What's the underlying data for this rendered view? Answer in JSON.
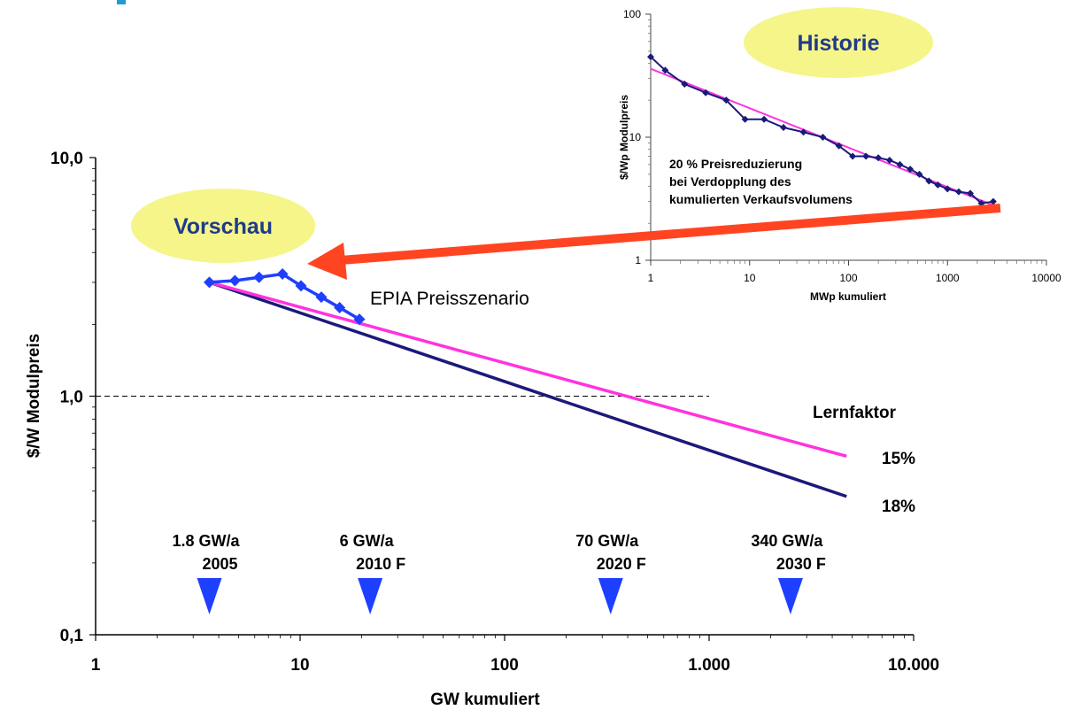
{
  "chart_data": [
    {
      "type": "line",
      "scale": "log-log",
      "xlabel": "GW  kumuliert",
      "ylabel": "$/W  Modulpreis",
      "xlim": [
        1,
        10000
      ],
      "ylim": [
        0.1,
        10
      ],
      "x_ticks": [
        1,
        10,
        100,
        1000,
        10000
      ],
      "x_tick_labels": [
        "1",
        "10",
        "100",
        "1.000",
        "10.000"
      ],
      "y_ticks": [
        0.1,
        1,
        10
      ],
      "y_tick_labels": [
        "0,1",
        "1,0",
        "10,0"
      ],
      "grid": false,
      "reference_line": {
        "y": 1.0,
        "x_range": [
          1,
          1000
        ],
        "style": "dashed"
      },
      "series": [
        {
          "name": "EPIA Preisszenario",
          "color": "#1f3fff",
          "marker": "diamond",
          "x": [
            3.6,
            4.8,
            6.3,
            8.2,
            10.1,
            12.7,
            15.6,
            19.5
          ],
          "y": [
            3.0,
            3.05,
            3.15,
            3.25,
            2.9,
            2.6,
            2.35,
            2.1
          ]
        },
        {
          "name": "15%",
          "color": "#ff33dd",
          "x": [
            3.6,
            4700
          ],
          "y": [
            3.0,
            0.56
          ]
        },
        {
          "name": "18%",
          "color": "#1a1a7a",
          "x": [
            3.6,
            4700
          ],
          "y": [
            3.0,
            0.38
          ]
        }
      ],
      "legend_title": "Lernfaktor",
      "markers": [
        {
          "x": 3.6,
          "label": "1.8 GW/a",
          "year": "2005"
        },
        {
          "x": 22,
          "label": "6 GW/a",
          "year": "2010 F"
        },
        {
          "x": 330,
          "label": "70 GW/a",
          "year": "2020 F"
        },
        {
          "x": 2500,
          "label": "340 GW/a",
          "year": "2030 F"
        }
      ],
      "callout": "Vorschau",
      "callout_color": "#f5f58a",
      "callout_text_color": "#1f3a8a"
    },
    {
      "type": "line",
      "scale": "log-log",
      "xlabel": "MWp kumuliert",
      "ylabel": "$/Wp Modulpreis",
      "xlim": [
        1,
        10000
      ],
      "ylim": [
        1,
        100
      ],
      "x_ticks": [
        1,
        10,
        100,
        1000,
        10000
      ],
      "x_tick_labels": [
        "1",
        "10",
        "100",
        "1000",
        "10000"
      ],
      "y_ticks": [
        1,
        10,
        100
      ],
      "y_tick_labels": [
        "1",
        "10",
        "100"
      ],
      "series": [
        {
          "name": "Historie",
          "color": "#1a1a7a",
          "marker": "diamond",
          "x": [
            1,
            1.4,
            2.2,
            3.6,
            5.8,
            9,
            14,
            22,
            35,
            55,
            80,
            110,
            150,
            200,
            260,
            330,
            420,
            520,
            650,
            800,
            1000,
            1300,
            1700,
            2200,
            2900
          ],
          "y": [
            45,
            35,
            27,
            23,
            20,
            14,
            14,
            12,
            11,
            10,
            8.5,
            7,
            7,
            6.8,
            6.5,
            6,
            5.5,
            5,
            4.4,
            4.1,
            3.8,
            3.6,
            3.5,
            2.9,
            3.0
          ]
        },
        {
          "name": "Trend",
          "color": "#ff33dd",
          "x": [
            1,
            2900
          ],
          "y": [
            36,
            2.8
          ]
        }
      ],
      "annotation": [
        "20 % Preisreduzierung",
        "bei Verdopplung des",
        "kumulierten Verkaufsvolumens"
      ],
      "callout": "Historie",
      "callout_color": "#f5f58a",
      "callout_text_color": "#1f3a8a"
    }
  ],
  "arrow_color": "#ff4422",
  "accent_color": "#1e9bd7"
}
